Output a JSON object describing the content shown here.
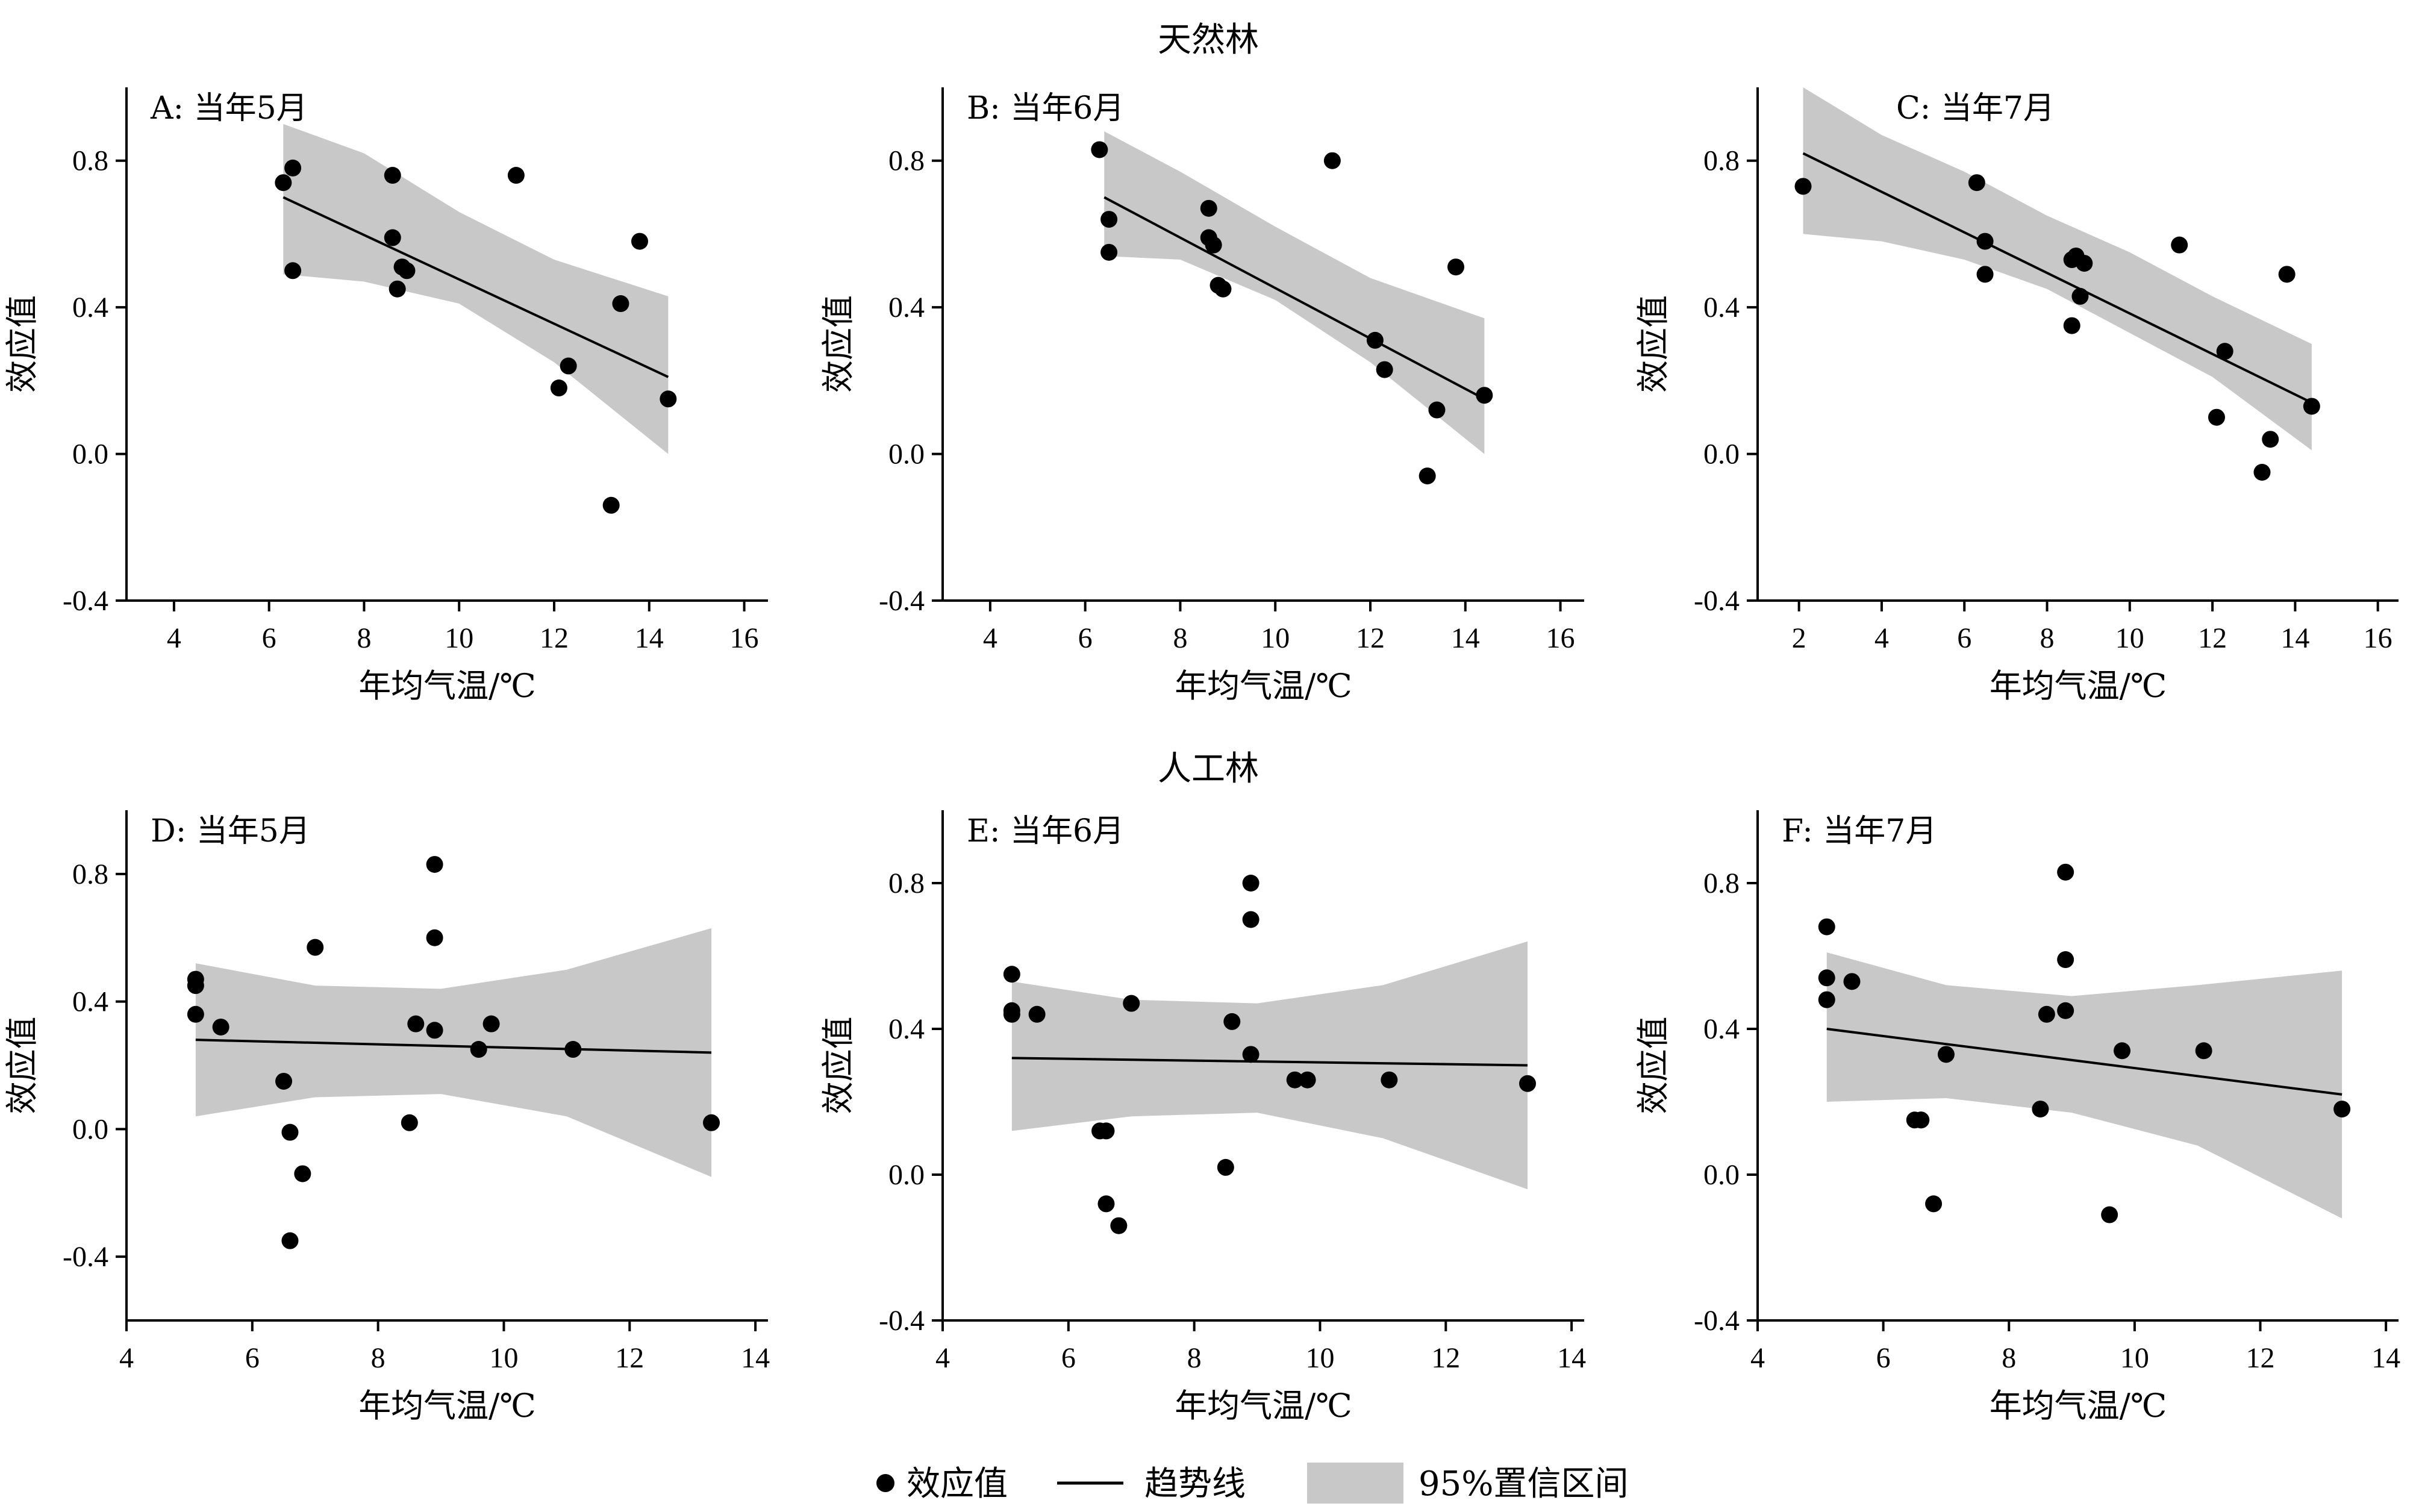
{
  "groups": [
    {
      "title": "天然林"
    },
    {
      "title": "人工林"
    }
  ],
  "legend": {
    "point_label": "效应值",
    "line_label": "趋势线",
    "band_label": "95%置信区间"
  },
  "colors": {
    "band": "#c8c8c8",
    "point": "#000000",
    "line": "#000000",
    "axis": "#000000"
  },
  "chart_data": [
    {
      "type": "scatter",
      "panel_label": "A: 当年5月",
      "xlabel": "年均气温/℃",
      "ylabel": "效应值",
      "xlim": [
        3,
        16.5
      ],
      "ylim": [
        -0.4,
        1.0
      ],
      "xticks": [
        4,
        6,
        8,
        10,
        12,
        14,
        16
      ],
      "yticks": [
        -0.4,
        0.0,
        0.4,
        0.8
      ],
      "points": [
        [
          6.3,
          0.74
        ],
        [
          6.5,
          0.78
        ],
        [
          6.5,
          0.5
        ],
        [
          8.6,
          0.76
        ],
        [
          8.6,
          0.59
        ],
        [
          8.7,
          0.45
        ],
        [
          8.8,
          0.51
        ],
        [
          8.9,
          0.5
        ],
        [
          11.2,
          0.76
        ],
        [
          12.1,
          0.18
        ],
        [
          12.3,
          0.24
        ],
        [
          13.2,
          -0.14
        ],
        [
          13.4,
          0.41
        ],
        [
          13.8,
          0.58
        ],
        [
          14.4,
          0.15
        ]
      ],
      "trend": [
        [
          6.3,
          0.7
        ],
        [
          14.4,
          0.21
        ]
      ],
      "ci_upper": [
        [
          6.3,
          0.9
        ],
        [
          8.0,
          0.82
        ],
        [
          10.0,
          0.66
        ],
        [
          12.0,
          0.53
        ],
        [
          14.4,
          0.43
        ]
      ],
      "ci_lower": [
        [
          6.3,
          0.49
        ],
        [
          8.0,
          0.47
        ],
        [
          10.0,
          0.41
        ],
        [
          12.0,
          0.25
        ],
        [
          14.4,
          0.0
        ]
      ]
    },
    {
      "type": "scatter",
      "panel_label": "B: 当年6月",
      "xlabel": "年均气温/℃",
      "ylabel": "效应值",
      "xlim": [
        3,
        16.5
      ],
      "ylim": [
        -0.4,
        1.0
      ],
      "xticks": [
        4,
        6,
        8,
        10,
        12,
        14,
        16
      ],
      "yticks": [
        -0.4,
        0.0,
        0.4,
        0.8
      ],
      "points": [
        [
          6.3,
          0.83
        ],
        [
          6.5,
          0.64
        ],
        [
          6.5,
          0.55
        ],
        [
          8.6,
          0.67
        ],
        [
          8.6,
          0.59
        ],
        [
          8.7,
          0.57
        ],
        [
          8.8,
          0.46
        ],
        [
          8.9,
          0.45
        ],
        [
          11.2,
          0.8
        ],
        [
          12.1,
          0.31
        ],
        [
          12.3,
          0.23
        ],
        [
          13.2,
          -0.06
        ],
        [
          13.4,
          0.12
        ],
        [
          13.8,
          0.51
        ],
        [
          14.4,
          0.16
        ]
      ],
      "trend": [
        [
          6.4,
          0.7
        ],
        [
          14.4,
          0.15
        ]
      ],
      "ci_upper": [
        [
          6.4,
          0.88
        ],
        [
          8.0,
          0.77
        ],
        [
          10.0,
          0.62
        ],
        [
          12.0,
          0.48
        ],
        [
          14.4,
          0.37
        ]
      ],
      "ci_lower": [
        [
          6.4,
          0.54
        ],
        [
          8.0,
          0.53
        ],
        [
          10.0,
          0.42
        ],
        [
          12.0,
          0.25
        ],
        [
          14.4,
          0.0
        ]
      ]
    },
    {
      "type": "scatter",
      "panel_label": "C: 当年7月",
      "xlabel": "年均气温/℃",
      "ylabel": "效应值",
      "xlim": [
        1,
        16.5
      ],
      "ylim": [
        -0.4,
        1.0
      ],
      "xticks": [
        2,
        4,
        6,
        8,
        10,
        12,
        14,
        16
      ],
      "yticks": [
        -0.4,
        0.0,
        0.4,
        0.8
      ],
      "points": [
        [
          2.1,
          0.73
        ],
        [
          6.3,
          0.74
        ],
        [
          6.5,
          0.58
        ],
        [
          6.5,
          0.49
        ],
        [
          8.6,
          0.53
        ],
        [
          8.6,
          0.35
        ],
        [
          8.7,
          0.54
        ],
        [
          8.8,
          0.43
        ],
        [
          8.9,
          0.52
        ],
        [
          11.2,
          0.57
        ],
        [
          12.1,
          0.1
        ],
        [
          12.3,
          0.28
        ],
        [
          13.2,
          -0.05
        ],
        [
          13.4,
          0.04
        ],
        [
          13.8,
          0.49
        ],
        [
          14.4,
          0.13
        ]
      ],
      "trend": [
        [
          2.1,
          0.82
        ],
        [
          14.4,
          0.14
        ]
      ],
      "ci_upper": [
        [
          2.1,
          1.0
        ],
        [
          4.0,
          0.87
        ],
        [
          6.0,
          0.77
        ],
        [
          8.0,
          0.65
        ],
        [
          10.0,
          0.55
        ],
        [
          12.0,
          0.43
        ],
        [
          14.4,
          0.3
        ]
      ],
      "ci_lower": [
        [
          2.1,
          0.6
        ],
        [
          4.0,
          0.58
        ],
        [
          6.0,
          0.53
        ],
        [
          8.0,
          0.45
        ],
        [
          10.0,
          0.33
        ],
        [
          12.0,
          0.21
        ],
        [
          14.4,
          0.01
        ]
      ]
    },
    {
      "type": "scatter",
      "panel_label": "D: 当年5月",
      "xlabel": "年均气温/℃",
      "ylabel": "效应值",
      "xlim": [
        4,
        14.2
      ],
      "ylim": [
        -0.6,
        1.0
      ],
      "xticks": [
        4,
        6,
        8,
        10,
        12,
        14
      ],
      "yticks": [
        -0.4,
        0.0,
        0.4,
        0.8
      ],
      "points": [
        [
          5.1,
          0.47
        ],
        [
          5.1,
          0.45
        ],
        [
          5.1,
          0.36
        ],
        [
          5.5,
          0.32
        ],
        [
          6.5,
          0.15
        ],
        [
          6.6,
          -0.01
        ],
        [
          6.6,
          -0.35
        ],
        [
          6.8,
          -0.14
        ],
        [
          7.0,
          0.57
        ],
        [
          8.5,
          0.02
        ],
        [
          8.6,
          0.33
        ],
        [
          8.9,
          0.83
        ],
        [
          8.9,
          0.6
        ],
        [
          8.9,
          0.31
        ],
        [
          9.6,
          0.25
        ],
        [
          9.8,
          0.33
        ],
        [
          11.1,
          0.25
        ],
        [
          13.3,
          0.02
        ]
      ],
      "trend": [
        [
          5.1,
          0.28
        ],
        [
          13.3,
          0.24
        ]
      ],
      "ci_upper": [
        [
          5.1,
          0.52
        ],
        [
          7.0,
          0.45
        ],
        [
          9.0,
          0.44
        ],
        [
          11.0,
          0.5
        ],
        [
          13.3,
          0.63
        ]
      ],
      "ci_lower": [
        [
          5.1,
          0.04
        ],
        [
          7.0,
          0.1
        ],
        [
          9.0,
          0.11
        ],
        [
          11.0,
          0.04
        ],
        [
          13.3,
          -0.15
        ]
      ]
    },
    {
      "type": "scatter",
      "panel_label": "E: 当年6月",
      "xlabel": "年均气温/℃",
      "ylabel": "效应值",
      "xlim": [
        4,
        14.2
      ],
      "ylim": [
        -0.4,
        1.0
      ],
      "xticks": [
        4,
        6,
        8,
        10,
        12,
        14
      ],
      "yticks": [
        -0.4,
        0.0,
        0.4,
        0.8
      ],
      "points": [
        [
          5.1,
          0.55
        ],
        [
          5.1,
          0.45
        ],
        [
          5.1,
          0.44
        ],
        [
          5.5,
          0.44
        ],
        [
          6.5,
          0.12
        ],
        [
          6.6,
          0.12
        ],
        [
          6.6,
          -0.08
        ],
        [
          6.8,
          -0.14
        ],
        [
          7.0,
          0.47
        ],
        [
          8.5,
          0.02
        ],
        [
          8.6,
          0.42
        ],
        [
          8.9,
          0.8
        ],
        [
          8.9,
          0.7
        ],
        [
          8.9,
          0.33
        ],
        [
          9.6,
          0.26
        ],
        [
          9.8,
          0.26
        ],
        [
          11.1,
          0.26
        ],
        [
          13.3,
          0.25
        ]
      ],
      "trend": [
        [
          5.1,
          0.32
        ],
        [
          13.3,
          0.3
        ]
      ],
      "ci_upper": [
        [
          5.1,
          0.53
        ],
        [
          7.0,
          0.48
        ],
        [
          9.0,
          0.47
        ],
        [
          11.0,
          0.52
        ],
        [
          13.3,
          0.64
        ]
      ],
      "ci_lower": [
        [
          5.1,
          0.12
        ],
        [
          7.0,
          0.16
        ],
        [
          9.0,
          0.17
        ],
        [
          11.0,
          0.1
        ],
        [
          13.3,
          -0.04
        ]
      ]
    },
    {
      "type": "scatter",
      "panel_label": "F: 当年7月",
      "xlabel": "年均气温/℃",
      "ylabel": "效应值",
      "xlim": [
        4,
        14.2
      ],
      "ylim": [
        -0.4,
        1.0
      ],
      "xticks": [
        4,
        6,
        8,
        10,
        12,
        14
      ],
      "yticks": [
        -0.4,
        0.0,
        0.4,
        0.8
      ],
      "points": [
        [
          5.1,
          0.68
        ],
        [
          5.1,
          0.54
        ],
        [
          5.1,
          0.48
        ],
        [
          5.5,
          0.53
        ],
        [
          6.5,
          0.15
        ],
        [
          6.6,
          0.15
        ],
        [
          6.6,
          0.15
        ],
        [
          6.8,
          -0.08
        ],
        [
          7.0,
          0.33
        ],
        [
          8.5,
          0.18
        ],
        [
          8.6,
          0.44
        ],
        [
          8.9,
          0.83
        ],
        [
          8.9,
          0.59
        ],
        [
          8.9,
          0.45
        ],
        [
          9.6,
          -0.11
        ],
        [
          9.8,
          0.34
        ],
        [
          11.1,
          0.34
        ],
        [
          13.3,
          0.18
        ]
      ],
      "trend": [
        [
          5.1,
          0.4
        ],
        [
          13.3,
          0.22
        ]
      ],
      "ci_upper": [
        [
          5.1,
          0.61
        ],
        [
          7.0,
          0.52
        ],
        [
          9.0,
          0.49
        ],
        [
          11.0,
          0.52
        ],
        [
          13.3,
          0.56
        ]
      ],
      "ci_lower": [
        [
          5.1,
          0.2
        ],
        [
          7.0,
          0.21
        ],
        [
          9.0,
          0.17
        ],
        [
          11.0,
          0.08
        ],
        [
          13.3,
          -0.12
        ]
      ]
    }
  ]
}
